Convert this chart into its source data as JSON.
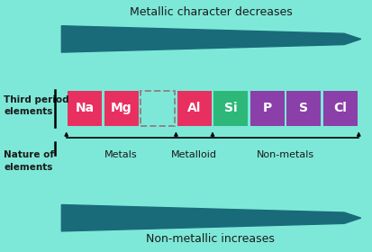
{
  "bg_color": "#7de8d8",
  "title_top": "Metallic character decreases",
  "title_bottom": "Non-metallic increases",
  "elements": [
    "Na",
    "Mg",
    "Al",
    "Si",
    "P",
    "S",
    "Cl"
  ],
  "element_colors": [
    "#e83060",
    "#e83060",
    "#e83060",
    "#2db87a",
    "#8b3fa8",
    "#8b3fa8",
    "#8b3fa8"
  ],
  "arrow_color": "#1a6b7a",
  "text_color": "#1a1a1a",
  "element_text_color": "#ffffff"
}
